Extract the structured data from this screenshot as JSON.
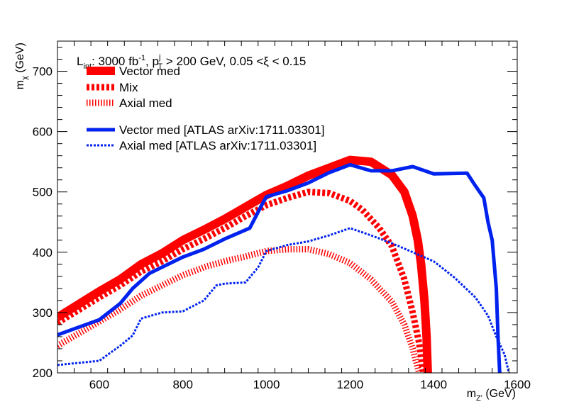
{
  "chart_data": {
    "type": "line",
    "header": {
      "lumi_prefix": "L",
      "lumi_sub": "int",
      "lumi_value": ": 3000 fb",
      "lumi_sup": "-1",
      "pt_sep": ", p",
      "pt_sup": "j",
      "pt_sub": "T",
      "cut_text": " > 200 GeV, 0.05 <ξ < 0.15"
    },
    "xlabel": {
      "main": "m",
      "sub": "Z'",
      "unit": " (GeV)"
    },
    "ylabel": {
      "main": "m",
      "sub": "χ",
      "unit": " (GeV)"
    },
    "xlim": [
      500,
      1600
    ],
    "ylim": [
      200,
      750
    ],
    "x_ticks": [
      600,
      800,
      1000,
      1200,
      1400,
      1600
    ],
    "y_ticks": [
      200,
      300,
      400,
      500,
      600,
      700
    ],
    "grid": false,
    "legend_position": "top-left",
    "series": [
      {
        "name": "Vector med",
        "color": "#ff0000",
        "style": "solid-thick",
        "points": [
          [
            500,
            292
          ],
          [
            600,
            335
          ],
          [
            650,
            355
          ],
          [
            700,
            380
          ],
          [
            750,
            398
          ],
          [
            800,
            420
          ],
          [
            850,
            437
          ],
          [
            900,
            455
          ],
          [
            950,
            475
          ],
          [
            1000,
            495
          ],
          [
            1050,
            510
          ],
          [
            1100,
            527
          ],
          [
            1150,
            540
          ],
          [
            1200,
            553
          ],
          [
            1250,
            550
          ],
          [
            1300,
            528
          ],
          [
            1330,
            500
          ],
          [
            1350,
            460
          ],
          [
            1362,
            420
          ],
          [
            1370,
            380
          ],
          [
            1378,
            320
          ],
          [
            1383,
            260
          ],
          [
            1386,
            200
          ]
        ]
      },
      {
        "name": "Mix",
        "color": "#ff0000",
        "style": "dashed-thick",
        "points": [
          [
            500,
            283
          ],
          [
            600,
            325
          ],
          [
            650,
            345
          ],
          [
            700,
            368
          ],
          [
            750,
            385
          ],
          [
            800,
            405
          ],
          [
            850,
            422
          ],
          [
            900,
            440
          ],
          [
            950,
            460
          ],
          [
            1000,
            478
          ],
          [
            1050,
            490
          ],
          [
            1100,
            500
          ],
          [
            1150,
            498
          ],
          [
            1200,
            485
          ],
          [
            1230,
            470
          ],
          [
            1270,
            440
          ],
          [
            1300,
            410
          ],
          [
            1330,
            355
          ],
          [
            1350,
            300
          ],
          [
            1365,
            250
          ],
          [
            1375,
            200
          ]
        ]
      },
      {
        "name": "Axial med",
        "color": "#ff0000",
        "style": "hatched",
        "points": [
          [
            500,
            245
          ],
          [
            600,
            285
          ],
          [
            650,
            305
          ],
          [
            700,
            328
          ],
          [
            750,
            345
          ],
          [
            800,
            362
          ],
          [
            850,
            375
          ],
          [
            900,
            385
          ],
          [
            950,
            393
          ],
          [
            1000,
            402
          ],
          [
            1050,
            405
          ],
          [
            1100,
            405
          ],
          [
            1150,
            397
          ],
          [
            1200,
            382
          ],
          [
            1250,
            355
          ],
          [
            1300,
            318
          ],
          [
            1330,
            280
          ],
          [
            1350,
            240
          ],
          [
            1365,
            200
          ]
        ]
      },
      {
        "name": "Vector med [ATLAS arXiv:1711.03301]",
        "color": "#0022ee",
        "style": "solid",
        "points": [
          [
            500,
            263
          ],
          [
            600,
            288
          ],
          [
            650,
            315
          ],
          [
            680,
            340
          ],
          [
            720,
            365
          ],
          [
            800,
            392
          ],
          [
            850,
            405
          ],
          [
            900,
            422
          ],
          [
            960,
            440
          ],
          [
            990,
            480
          ],
          [
            1000,
            492
          ],
          [
            1050,
            502
          ],
          [
            1100,
            515
          ],
          [
            1150,
            532
          ],
          [
            1200,
            545
          ],
          [
            1250,
            535
          ],
          [
            1300,
            535
          ],
          [
            1350,
            542
          ],
          [
            1400,
            530
          ],
          [
            1480,
            531
          ],
          [
            1500,
            510
          ],
          [
            1520,
            490
          ],
          [
            1530,
            450
          ],
          [
            1540,
            420
          ],
          [
            1545,
            380
          ],
          [
            1550,
            340
          ],
          [
            1552,
            300
          ],
          [
            1554,
            260
          ],
          [
            1556,
            230
          ],
          [
            1558,
            200
          ]
        ]
      },
      {
        "name": "Axial med [ATLAS arXiv:1711.03301]",
        "color": "#0022ee",
        "style": "dotted",
        "points": [
          [
            500,
            213
          ],
          [
            600,
            220
          ],
          [
            650,
            245
          ],
          [
            680,
            262
          ],
          [
            700,
            290
          ],
          [
            750,
            300
          ],
          [
            800,
            302
          ],
          [
            850,
            320
          ],
          [
            880,
            345
          ],
          [
            900,
            348
          ],
          [
            950,
            350
          ],
          [
            980,
            375
          ],
          [
            1000,
            402
          ],
          [
            1050,
            412
          ],
          [
            1100,
            418
          ],
          [
            1150,
            428
          ],
          [
            1200,
            440
          ],
          [
            1250,
            428
          ],
          [
            1300,
            415
          ],
          [
            1350,
            400
          ],
          [
            1400,
            385
          ],
          [
            1450,
            358
          ],
          [
            1500,
            325
          ],
          [
            1530,
            295
          ],
          [
            1550,
            260
          ],
          [
            1570,
            230
          ],
          [
            1580,
            200
          ]
        ]
      }
    ]
  }
}
